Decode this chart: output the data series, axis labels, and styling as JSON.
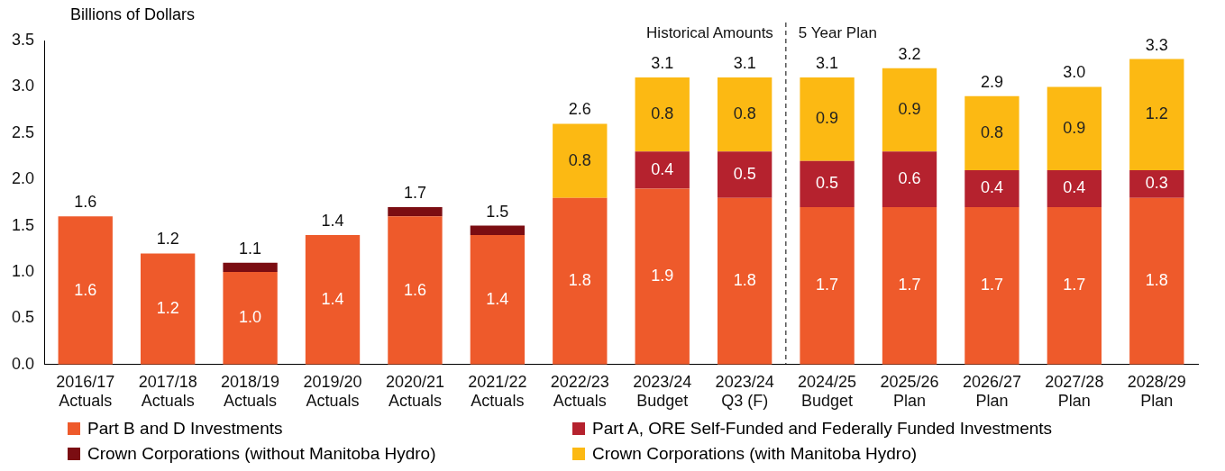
{
  "chart_data": {
    "type": "bar",
    "stacked": true,
    "ylabel": "Billions of Dollars",
    "categories": [
      "2016/17 Actuals",
      "2017/18 Actuals",
      "2018/19 Actuals",
      "2019/20 Actuals",
      "2020/21 Actuals",
      "2021/22 Actuals",
      "2022/23 Actuals",
      "2023/24 Budget",
      "2023/24 Q3 (F)",
      "2024/25 Budget",
      "2025/26 Plan",
      "2026/27 Plan",
      "2027/28 Plan",
      "2028/29 Plan"
    ],
    "series": [
      {
        "name": "Part B and D Investments",
        "color": "#ee5a2b",
        "values": [
          1.6,
          1.2,
          1.0,
          1.4,
          1.6,
          1.4,
          1.8,
          1.9,
          1.8,
          1.7,
          1.7,
          1.7,
          1.7,
          1.8
        ],
        "value_labels": [
          "1.6",
          "1.2",
          "1.0",
          "1.4",
          "1.6",
          "1.4",
          "1.8",
          "1.9",
          "1.8",
          "1.7",
          "1.7",
          "1.7",
          "1.7",
          "1.8"
        ]
      },
      {
        "name": "Part A, ORE Self-Funded and Federally Funded Investments",
        "color": "#b5222e",
        "values": [
          null,
          null,
          null,
          null,
          null,
          null,
          null,
          0.4,
          0.5,
          0.5,
          0.6,
          0.4,
          0.4,
          0.3
        ],
        "value_labels": [
          null,
          null,
          null,
          null,
          null,
          null,
          null,
          "0.4",
          "0.5",
          "0.5",
          "0.6",
          "0.4",
          "0.4",
          "0.3"
        ]
      },
      {
        "name": "Crown Corporations (without Manitoba Hydro)",
        "color": "#7b0d12",
        "values": [
          null,
          null,
          0.1,
          null,
          0.1,
          0.1,
          null,
          null,
          null,
          null,
          null,
          null,
          null,
          null
        ]
      },
      {
        "name": "Crown Corporations (with Manitoba Hydro)",
        "color": "#fcb913",
        "values": [
          null,
          null,
          null,
          null,
          null,
          null,
          0.8,
          0.8,
          0.8,
          0.9,
          0.9,
          0.8,
          0.9,
          1.2
        ],
        "value_labels": [
          null,
          null,
          null,
          null,
          null,
          null,
          "0.8",
          "0.8",
          "0.8",
          "0.9",
          "0.9",
          "0.8",
          "0.9",
          "1.2"
        ]
      }
    ],
    "totals": [
      "1.6",
      "1.2",
      "1.1",
      "1.4",
      "1.7",
      "1.5",
      "2.6",
      "3.1",
      "3.1",
      "3.1",
      "3.2",
      "2.9",
      "3.0",
      "3.3"
    ],
    "ylim": [
      0,
      3.5
    ],
    "yticks": [
      {
        "value": 0,
        "label": "0.0"
      },
      {
        "value": 0.5,
        "label": "0.5"
      },
      {
        "value": 1,
        "label": "1.0"
      },
      {
        "value": 1.5,
        "label": "1.5"
      },
      {
        "value": 2,
        "label": "2.0"
      },
      {
        "value": 2.5,
        "label": "2.5"
      },
      {
        "value": 3,
        "label": "3.0"
      },
      {
        "value": 3.5,
        "label": "3.5"
      }
    ],
    "grid": false,
    "legend": "bottom",
    "annotations": [
      "Historical Amounts",
      "5 Year Plan"
    ]
  }
}
